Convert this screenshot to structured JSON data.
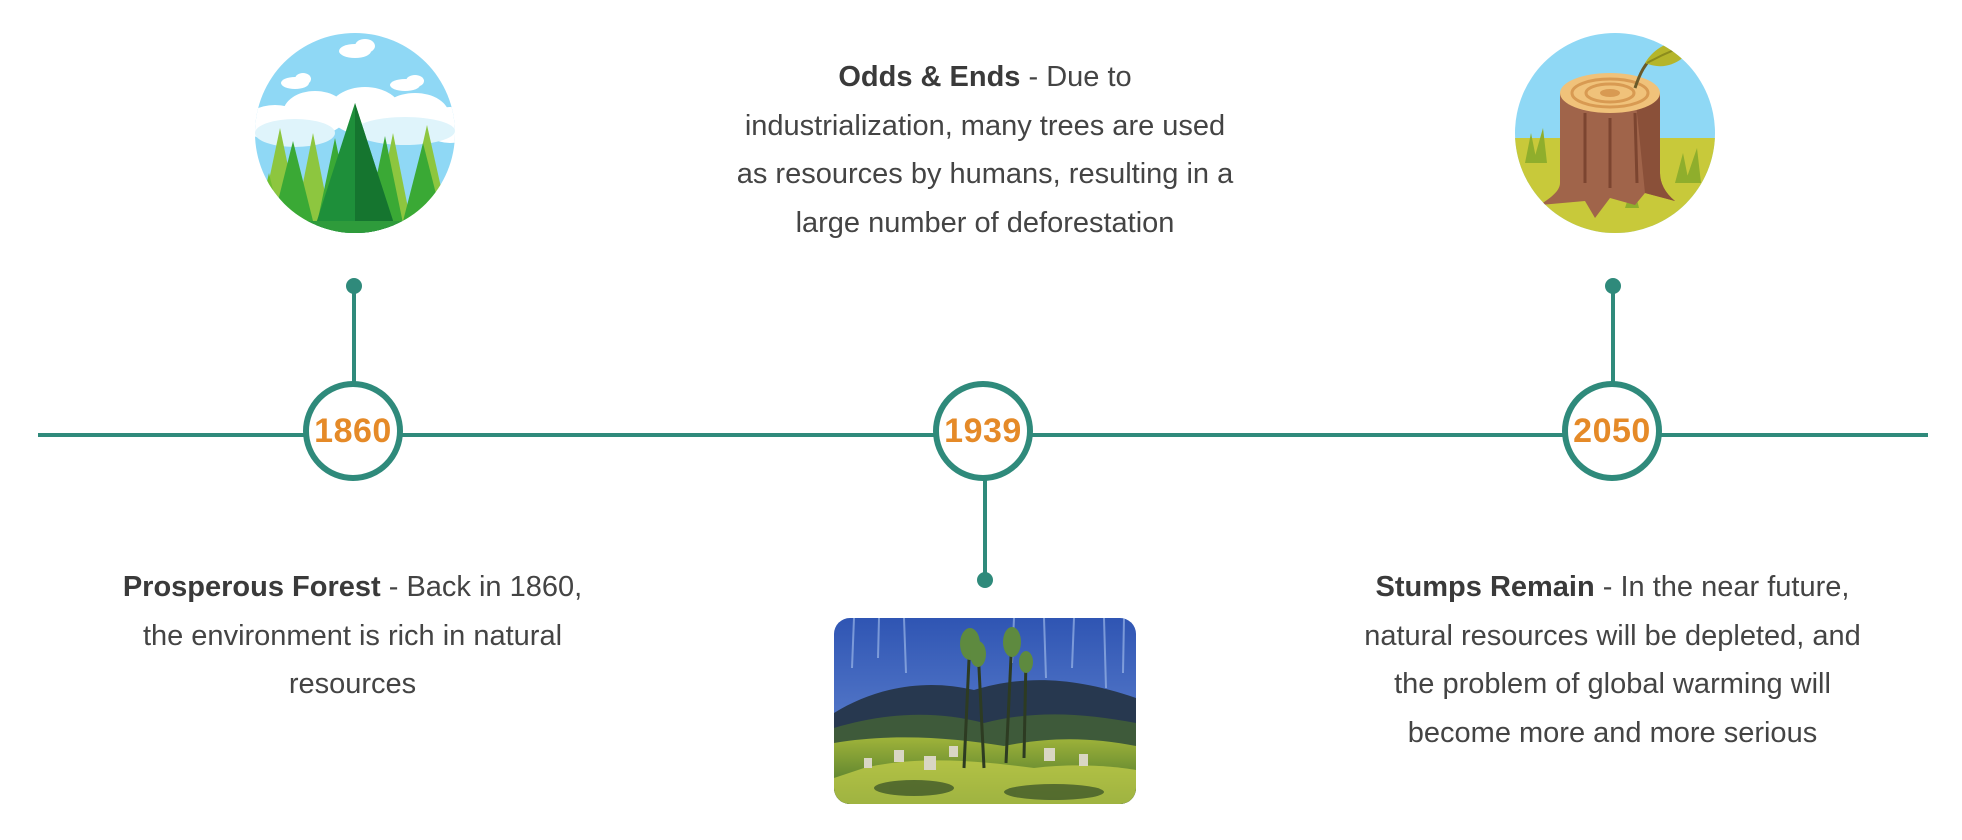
{
  "timeline": {
    "events": [
      {
        "year": "1860",
        "title": "Prosperous Forest",
        "separator": " - ",
        "text": "Back in 1860, the environment is rich in natural resources",
        "icon": "pine-forest-icon"
      },
      {
        "year": "1939",
        "title": "Odds & Ends",
        "separator": " - ",
        "text": "Due to industrialization, many trees are used as resources by humans, resulting in a large number of deforestation",
        "icon": "forest-painting-image"
      },
      {
        "year": "2050",
        "title": "Stumps Remain",
        "separator": " - ",
        "text": "In the near future, natural resources will be depleted, and the problem of global warming will become more and more serious",
        "icon": "tree-stump-icon"
      }
    ],
    "colors": {
      "line": "#2f8a7b",
      "year": "#e58a28",
      "text": "#444444"
    }
  }
}
